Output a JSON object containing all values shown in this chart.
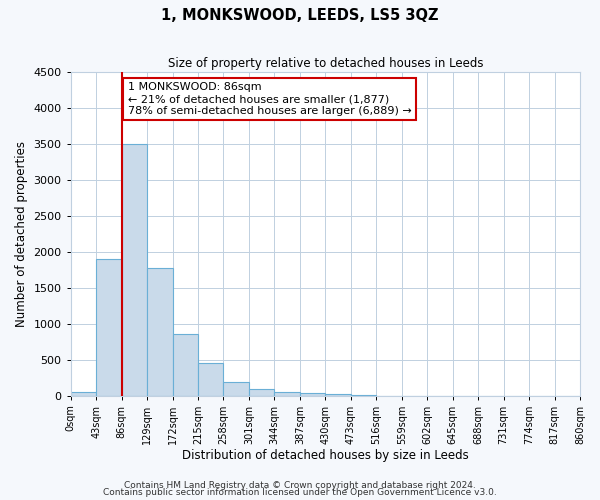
{
  "title": "1, MONKSWOOD, LEEDS, LS5 3QZ",
  "subtitle": "Size of property relative to detached houses in Leeds",
  "xlabel": "Distribution of detached houses by size in Leeds",
  "ylabel": "Number of detached properties",
  "footer_line1": "Contains HM Land Registry data © Crown copyright and database right 2024.",
  "footer_line2": "Contains public sector information licensed under the Open Government Licence v3.0.",
  "bin_edges": [
    0,
    43,
    86,
    129,
    172,
    215,
    258,
    301,
    344,
    387,
    430,
    473,
    516,
    559,
    602,
    645,
    688,
    731,
    774,
    817,
    860
  ],
  "bin_labels": [
    "0sqm",
    "43sqm",
    "86sqm",
    "129sqm",
    "172sqm",
    "215sqm",
    "258sqm",
    "301sqm",
    "344sqm",
    "387sqm",
    "430sqm",
    "473sqm",
    "516sqm",
    "559sqm",
    "602sqm",
    "645sqm",
    "688sqm",
    "731sqm",
    "774sqm",
    "817sqm",
    "860sqm"
  ],
  "bar_heights": [
    50,
    1900,
    3500,
    1775,
    860,
    450,
    185,
    90,
    55,
    35,
    20,
    10,
    0,
    0,
    0,
    0,
    0,
    0,
    0,
    0
  ],
  "bar_color": "#c9daea",
  "bar_edge_color": "#6aafd6",
  "grid_color": "#c0d0e0",
  "plot_bg_color": "#ffffff",
  "fig_bg_color": "#f5f8fc",
  "annotation_line1": "1 MONKSWOOD: 86sqm",
  "annotation_line2": "← 21% of detached houses are smaller (1,877)",
  "annotation_line3": "78% of semi-detached houses are larger (6,889) →",
  "annotation_box_facecolor": "#ffffff",
  "annotation_box_edgecolor": "#cc0000",
  "vline_x": 86,
  "vline_color": "#cc0000",
  "ylim": [
    0,
    4500
  ],
  "xlim": [
    0,
    860
  ],
  "yticks": [
    0,
    500,
    1000,
    1500,
    2000,
    2500,
    3000,
    3500,
    4000,
    4500
  ]
}
